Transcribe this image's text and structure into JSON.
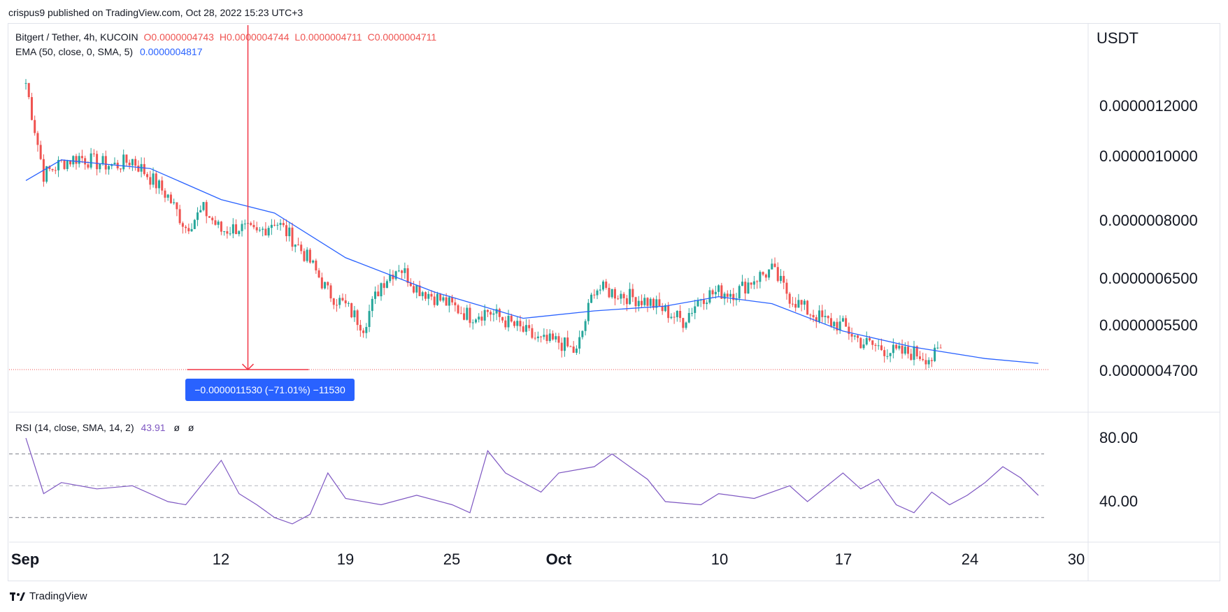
{
  "publisher_line": "crispus9 published on TradingView.com, Oct 28, 2022 15:23 UTC+3",
  "legend": {
    "symbol": "Bitgert / Tether, 4h, KUCOIN",
    "ohlc": [
      {
        "k": "O",
        "v": "0.0000004743"
      },
      {
        "k": "H",
        "v": "0.0000004744"
      },
      {
        "k": "L",
        "v": "0.0000004711"
      },
      {
        "k": "C",
        "v": "0.0000004711"
      }
    ],
    "ema_label": "EMA (50, close, 0, SMA, 5)",
    "ema_value": "0.0000004817",
    "rsi_label": "RSI (14, close, SMA, 14, 2)",
    "rsi_value": "43.91",
    "rsi_extra_1": "ø",
    "rsi_extra_2": "ø"
  },
  "price_axis": {
    "unit": "USDT",
    "ticks": [
      "0.0000012000",
      "0.0000010000",
      "0.0000008000",
      "0.0000006500",
      "0.0000005500",
      "0.0000004700"
    ]
  },
  "rsi_axis": {
    "ticks": [
      "80.00",
      "40.00"
    ]
  },
  "x_axis": {
    "ticks": [
      {
        "label": "Sep",
        "bold": true
      },
      {
        "label": "12",
        "bold": false
      },
      {
        "label": "19",
        "bold": false
      },
      {
        "label": "25",
        "bold": false
      },
      {
        "label": "Oct",
        "bold": true
      },
      {
        "label": "10",
        "bold": false
      },
      {
        "label": "17",
        "bold": false
      },
      {
        "label": "24",
        "bold": false
      },
      {
        "label": "30",
        "bold": false
      }
    ]
  },
  "measure_label": "−0.0000011530 (−71.01%) −11530",
  "brand": "TradingView",
  "colors": {
    "up": "#26a69a",
    "down": "#ef5350",
    "ema": "#2962ff",
    "rsi": "#7e57c2",
    "measure": "#f23645",
    "measure_label_bg": "#2962ff"
  },
  "chart_data": [
    {
      "type": "candlestick",
      "title": "Bitgert / Tether, 4h, KUCOIN",
      "ylabel": "USDT",
      "y_scale": "log",
      "ylim": [
        4.4e-07,
        1.4e-06
      ],
      "xlim": [
        "2022-09-01",
        "2022-10-30"
      ],
      "close_series": [
        {
          "date": "2022-09-01",
          "value": 1.3e-06
        },
        {
          "date": "2022-09-02",
          "value": 9.4e-07
        },
        {
          "date": "2022-09-03",
          "value": 9.8e-07
        },
        {
          "date": "2022-09-04",
          "value": 1e-06
        },
        {
          "date": "2022-09-05",
          "value": 9.8e-07
        },
        {
          "date": "2022-09-06",
          "value": 9.7e-07
        },
        {
          "date": "2022-09-07",
          "value": 9.9e-07
        },
        {
          "date": "2022-09-08",
          "value": 9.3e-07
        },
        {
          "date": "2022-09-09",
          "value": 8.7e-07
        },
        {
          "date": "2022-09-10",
          "value": 7.8e-07
        },
        {
          "date": "2022-09-11",
          "value": 8.3e-07
        },
        {
          "date": "2022-09-12",
          "value": 7.7e-07
        },
        {
          "date": "2022-09-13",
          "value": 7.8e-07
        },
        {
          "date": "2022-09-14",
          "value": 7.6e-07
        },
        {
          "date": "2022-09-15",
          "value": 8e-07
        },
        {
          "date": "2022-09-16",
          "value": 7.5e-07
        },
        {
          "date": "2022-09-17",
          "value": 6.9e-07
        },
        {
          "date": "2022-09-18",
          "value": 6.2e-07
        },
        {
          "date": "2022-09-19",
          "value": 5.9e-07
        },
        {
          "date": "2022-09-20",
          "value": 5.5e-07
        },
        {
          "date": "2022-09-21",
          "value": 6.4e-07
        },
        {
          "date": "2022-09-22",
          "value": 6.8e-07
        },
        {
          "date": "2022-09-23",
          "value": 6.3e-07
        },
        {
          "date": "2022-09-24",
          "value": 6.1e-07
        },
        {
          "date": "2022-09-25",
          "value": 5.9e-07
        },
        {
          "date": "2022-09-26",
          "value": 5.7e-07
        },
        {
          "date": "2022-09-27",
          "value": 5.8e-07
        },
        {
          "date": "2022-09-28",
          "value": 5.6e-07
        },
        {
          "date": "2022-09-29",
          "value": 5.4e-07
        },
        {
          "date": "2022-09-30",
          "value": 5.2e-07
        },
        {
          "date": "2022-10-01",
          "value": 5.2e-07
        },
        {
          "date": "2022-10-02",
          "value": 5e-07
        },
        {
          "date": "2022-10-03",
          "value": 6.3e-07
        },
        {
          "date": "2022-10-04",
          "value": 6.2e-07
        },
        {
          "date": "2022-10-05",
          "value": 6.1e-07
        },
        {
          "date": "2022-10-06",
          "value": 6e-07
        },
        {
          "date": "2022-10-07",
          "value": 5.8e-07
        },
        {
          "date": "2022-10-08",
          "value": 5.6e-07
        },
        {
          "date": "2022-10-09",
          "value": 6.1e-07
        },
        {
          "date": "2022-10-10",
          "value": 6.2e-07
        },
        {
          "date": "2022-10-11",
          "value": 6.2e-07
        },
        {
          "date": "2022-10-12",
          "value": 6.5e-07
        },
        {
          "date": "2022-10-13",
          "value": 6.7e-07
        },
        {
          "date": "2022-10-14",
          "value": 6.1e-07
        },
        {
          "date": "2022-10-15",
          "value": 5.8e-07
        },
        {
          "date": "2022-10-16",
          "value": 5.6e-07
        },
        {
          "date": "2022-10-17",
          "value": 5.5e-07
        },
        {
          "date": "2022-10-18",
          "value": 5.2e-07
        },
        {
          "date": "2022-10-19",
          "value": 5.1e-07
        },
        {
          "date": "2022-10-20",
          "value": 5e-07
        },
        {
          "date": "2022-10-21",
          "value": 5e-07
        },
        {
          "date": "2022-10-22",
          "value": 4.9e-07
        },
        {
          "date": "2022-10-23",
          "value": 5.2e-07
        },
        {
          "date": "2022-10-24",
          "value": 5e-07
        },
        {
          "date": "2022-10-25",
          "value": 4.8e-07
        },
        {
          "date": "2022-10-26",
          "value": 4.7e-07
        },
        {
          "date": "2022-10-27",
          "value": 4.75e-07
        },
        {
          "date": "2022-10-28",
          "value": 4.711e-07
        }
      ],
      "ema_series": [
        {
          "date": "2022-09-01",
          "value": 9.2e-07
        },
        {
          "date": "2022-09-03",
          "value": 9.9e-07
        },
        {
          "date": "2022-09-08",
          "value": 9.6e-07
        },
        {
          "date": "2022-09-12",
          "value": 8.6e-07
        },
        {
          "date": "2022-09-15",
          "value": 8.2e-07
        },
        {
          "date": "2022-09-19",
          "value": 7e-07
        },
        {
          "date": "2022-09-24",
          "value": 6.2e-07
        },
        {
          "date": "2022-09-29",
          "value": 5.65e-07
        },
        {
          "date": "2022-10-03",
          "value": 5.8e-07
        },
        {
          "date": "2022-10-07",
          "value": 5.9e-07
        },
        {
          "date": "2022-10-10",
          "value": 6.1e-07
        },
        {
          "date": "2022-10-13",
          "value": 5.95e-07
        },
        {
          "date": "2022-10-17",
          "value": 5.4e-07
        },
        {
          "date": "2022-10-21",
          "value": 5.1e-07
        },
        {
          "date": "2022-10-25",
          "value": 4.9e-07
        },
        {
          "date": "2022-10-28",
          "value": 4.817e-07
        }
      ],
      "last_price": 4.711e-07,
      "measurement": {
        "change": -1.153e-06,
        "percent": -71.01,
        "ticks": -11530,
        "from_date": "2022-09-13",
        "to_date": "2022-09-14"
      }
    },
    {
      "type": "line",
      "title": "RSI (14, close, SMA, 14, 2)",
      "ylim": [
        20,
        90
      ],
      "bands": [
        70,
        50,
        30
      ],
      "series": [
        {
          "name": "RSI",
          "values": [
            {
              "date": "2022-09-01",
              "value": 80
            },
            {
              "date": "2022-09-02",
              "value": 45
            },
            {
              "date": "2022-09-03",
              "value": 52
            },
            {
              "date": "2022-09-05",
              "value": 48
            },
            {
              "date": "2022-09-07",
              "value": 50
            },
            {
              "date": "2022-09-09",
              "value": 40
            },
            {
              "date": "2022-09-10",
              "value": 38
            },
            {
              "date": "2022-09-12",
              "value": 66
            },
            {
              "date": "2022-09-13",
              "value": 45
            },
            {
              "date": "2022-09-14",
              "value": 38
            },
            {
              "date": "2022-09-15",
              "value": 30
            },
            {
              "date": "2022-09-16",
              "value": 26
            },
            {
              "date": "2022-09-17",
              "value": 32
            },
            {
              "date": "2022-09-18",
              "value": 58
            },
            {
              "date": "2022-09-19",
              "value": 42
            },
            {
              "date": "2022-09-21",
              "value": 38
            },
            {
              "date": "2022-09-23",
              "value": 44
            },
            {
              "date": "2022-09-25",
              "value": 38
            },
            {
              "date": "2022-09-26",
              "value": 33
            },
            {
              "date": "2022-09-27",
              "value": 72
            },
            {
              "date": "2022-09-28",
              "value": 58
            },
            {
              "date": "2022-09-30",
              "value": 46
            },
            {
              "date": "2022-10-01",
              "value": 58
            },
            {
              "date": "2022-10-03",
              "value": 62
            },
            {
              "date": "2022-10-04",
              "value": 70
            },
            {
              "date": "2022-10-05",
              "value": 62
            },
            {
              "date": "2022-10-06",
              "value": 54
            },
            {
              "date": "2022-10-07",
              "value": 40
            },
            {
              "date": "2022-10-09",
              "value": 38
            },
            {
              "date": "2022-10-10",
              "value": 45
            },
            {
              "date": "2022-10-12",
              "value": 42
            },
            {
              "date": "2022-10-14",
              "value": 50
            },
            {
              "date": "2022-10-15",
              "value": 40
            },
            {
              "date": "2022-10-17",
              "value": 58
            },
            {
              "date": "2022-10-18",
              "value": 48
            },
            {
              "date": "2022-10-19",
              "value": 54
            },
            {
              "date": "2022-10-20",
              "value": 38
            },
            {
              "date": "2022-10-21",
              "value": 33
            },
            {
              "date": "2022-10-22",
              "value": 46
            },
            {
              "date": "2022-10-23",
              "value": 38
            },
            {
              "date": "2022-10-24",
              "value": 44
            },
            {
              "date": "2022-10-25",
              "value": 52
            },
            {
              "date": "2022-10-26",
              "value": 62
            },
            {
              "date": "2022-10-27",
              "value": 55
            },
            {
              "date": "2022-10-28",
              "value": 43.91
            }
          ]
        }
      ]
    }
  ]
}
